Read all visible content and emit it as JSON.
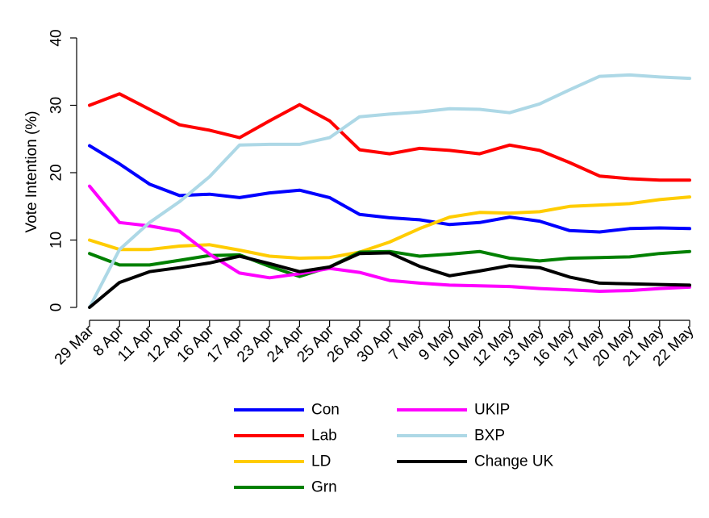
{
  "chart_data": {
    "type": "line",
    "title": "",
    "xlabel": "",
    "ylabel": "Vote Intention (%)",
    "ylim": [
      0,
      40
    ],
    "yticks": [
      0,
      10,
      20,
      30,
      40
    ],
    "grid": false,
    "legend_position": "bottom",
    "categories": [
      "29 Mar",
      "8 Apr",
      "11 Apr",
      "12 Apr",
      "16 Apr",
      "17 Apr",
      "23 Apr",
      "24 Apr",
      "25 Apr",
      "26 Apr",
      "30 Apr",
      "7 May",
      "9 May",
      "10 May",
      "12 May",
      "13 May",
      "16 May",
      "17 May",
      "20 May",
      "21 May",
      "22 May"
    ],
    "series": [
      {
        "name": "Con",
        "color": "#0000ff",
        "values": [
          24,
          21.3,
          18.3,
          16.6,
          16.8,
          16.3,
          17,
          17.4,
          16.3,
          13.8,
          13.3,
          13,
          12.3,
          12.6,
          13.4,
          12.8,
          11.4,
          11.2,
          11.7,
          11.8,
          11.7
        ]
      },
      {
        "name": "Lab",
        "color": "#ff0000",
        "values": [
          30,
          31.7,
          29.4,
          27.1,
          26.3,
          25.2,
          27.7,
          30.1,
          27.7,
          23.4,
          22.8,
          23.6,
          23.3,
          22.8,
          24.1,
          23.3,
          21.5,
          19.5,
          19.1,
          18.9,
          18.9
        ]
      },
      {
        "name": "LD",
        "color": "#ffcc00",
        "values": [
          10,
          8.6,
          8.6,
          9.1,
          9.3,
          8.5,
          7.6,
          7.3,
          7.4,
          8.2,
          9.7,
          11.7,
          13.4,
          14.1,
          14,
          14.2,
          15,
          15.2,
          15.4,
          16,
          16.4
        ]
      },
      {
        "name": "Grn",
        "color": "#008000",
        "values": [
          8,
          6.3,
          6.3,
          7,
          7.7,
          7.8,
          6.1,
          4.6,
          6,
          8.2,
          8.3,
          7.6,
          7.9,
          8.3,
          7.3,
          6.9,
          7.3,
          7.4,
          7.5,
          8,
          8.3
        ]
      },
      {
        "name": "UKIP",
        "color": "#ff00ff",
        "values": [
          18,
          12.6,
          12.1,
          11.3,
          7.9,
          5.1,
          4.4,
          5,
          5.8,
          5.2,
          4,
          3.6,
          3.3,
          3.2,
          3.1,
          2.8,
          2.6,
          2.4,
          2.5,
          2.8,
          3
        ]
      },
      {
        "name": "BXP",
        "color": "#add8e6",
        "values": [
          0,
          8.6,
          12.6,
          15.7,
          19.4,
          24.1,
          24.2,
          24.2,
          25.2,
          28.3,
          28.7,
          29,
          29.5,
          29.4,
          28.9,
          30.2,
          32.3,
          34.3,
          34.5,
          34.2,
          34
        ]
      },
      {
        "name": "Change UK",
        "color": "#000000",
        "values": [
          0,
          3.7,
          5.3,
          5.9,
          6.6,
          7.6,
          6.5,
          5.3,
          6,
          8,
          8.1,
          6.1,
          4.7,
          5.4,
          6.2,
          5.9,
          4.5,
          3.6,
          3.5,
          3.4,
          3.3
        ]
      }
    ]
  }
}
